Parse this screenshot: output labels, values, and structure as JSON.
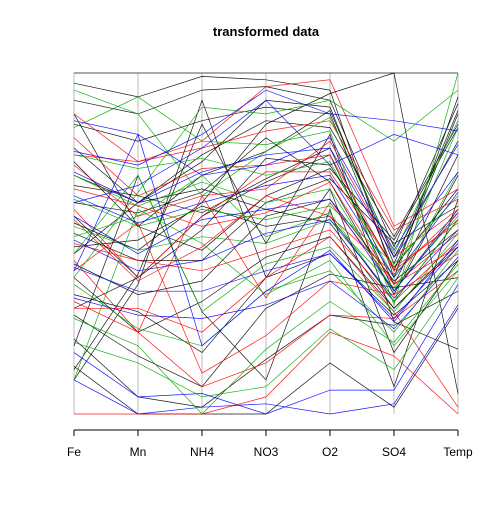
{
  "chart_data": {
    "type": "line",
    "plot_kind": "parallel-coordinates",
    "title": "transformed data",
    "xlabel": "",
    "ylabel": "",
    "variables": [
      "Fe",
      "Mn",
      "NH4",
      "NO3",
      "O2",
      "SO4",
      "Temp"
    ],
    "scale": "each variable rescaled to [0, 1]",
    "ylim": [
      0,
      1
    ],
    "grid": "vertical lines at each variable",
    "legend": "none",
    "series_colors": [
      "#000000",
      "#ff0000",
      "#00aa00",
      "#0000ff"
    ],
    "observations_note": "several hundred observations overplotted",
    "profiles": [
      {
        "color": "#000000",
        "values": [
          1.0,
          1.0,
          1.0,
          1.0,
          1.0,
          1.0,
          1.0
        ]
      },
      {
        "color": "#000000",
        "values": [
          0.97,
          0.93,
          0.99,
          0.98,
          0.95,
          0.4,
          0.93
        ]
      },
      {
        "color": "#000000",
        "values": [
          0.92,
          0.88,
          0.95,
          0.96,
          0.92,
          0.49,
          0.91
        ]
      },
      {
        "color": "#000000",
        "values": [
          0.85,
          0.8,
          0.86,
          0.9,
          0.88,
          0.42,
          0.88
        ]
      },
      {
        "color": "#000000",
        "values": [
          0.78,
          0.62,
          0.76,
          0.86,
          0.84,
          0.52,
          0.85
        ]
      },
      {
        "color": "#000000",
        "values": [
          0.74,
          0.55,
          0.7,
          0.77,
          0.89,
          0.46,
          0.8
        ]
      },
      {
        "color": "#000000",
        "values": [
          0.67,
          0.64,
          0.59,
          0.69,
          0.78,
          0.38,
          0.76
        ]
      },
      {
        "color": "#000000",
        "values": [
          0.62,
          0.59,
          0.65,
          0.81,
          0.68,
          0.35,
          0.7
        ]
      },
      {
        "color": "#000000",
        "values": [
          0.58,
          0.4,
          0.54,
          0.75,
          0.73,
          0.43,
          0.66
        ]
      },
      {
        "color": "#000000",
        "values": [
          0.53,
          0.45,
          0.45,
          0.62,
          0.69,
          0.5,
          0.61
        ]
      },
      {
        "color": "#000000",
        "values": [
          0.49,
          0.51,
          0.61,
          0.55,
          0.58,
          0.33,
          0.57
        ]
      },
      {
        "color": "#000000",
        "values": [
          0.44,
          0.35,
          0.39,
          0.58,
          0.63,
          0.39,
          0.54
        ]
      },
      {
        "color": "#000000",
        "values": [
          0.4,
          0.24,
          0.33,
          0.46,
          0.52,
          0.31,
          0.49
        ]
      },
      {
        "color": "#000000",
        "values": [
          0.35,
          0.3,
          0.18,
          0.4,
          0.47,
          0.29,
          0.45
        ]
      },
      {
        "color": "#000000",
        "values": [
          0.29,
          0.17,
          0.08,
          0.31,
          0.41,
          0.37,
          0.4
        ]
      },
      {
        "color": "#000000",
        "values": [
          0.22,
          0.05,
          0.02,
          0.16,
          0.29,
          0.26,
          0.36
        ]
      },
      {
        "color": "#000000",
        "values": [
          0.14,
          0.0,
          0.0,
          0.0,
          0.15,
          0.02,
          0.31
        ]
      },
      {
        "color": "#000000",
        "values": [
          0.13,
          0.41,
          0.85,
          0.5,
          0.82,
          0.27,
          0.19
        ]
      },
      {
        "color": "#000000",
        "values": [
          0.2,
          0.7,
          0.3,
          0.1,
          0.6,
          0.08,
          0.63
        ]
      },
      {
        "color": "#000000",
        "values": [
          0.56,
          0.48,
          0.62,
          0.85,
          0.94,
          1.0,
          0.06
        ]
      },
      {
        "color": "#000000",
        "values": [
          0.88,
          0.55,
          0.48,
          0.64,
          0.72,
          0.51,
          0.84
        ]
      },
      {
        "color": "#000000",
        "values": [
          0.7,
          0.62,
          0.74,
          0.92,
          0.9,
          0.44,
          0.89
        ]
      },
      {
        "color": "#000000",
        "values": [
          0.31,
          0.4,
          0.58,
          0.68,
          0.76,
          0.36,
          0.6
        ]
      },
      {
        "color": "#000000",
        "values": [
          0.1,
          0.38,
          0.92,
          0.4,
          0.66,
          0.18,
          0.45
        ]
      },
      {
        "color": "#000000",
        "values": [
          0.47,
          0.62,
          0.66,
          0.6,
          0.56,
          0.31,
          0.5
        ]
      },
      {
        "color": "#ff0000",
        "values": [
          0.88,
          0.74,
          0.78,
          0.83,
          0.86,
          0.54,
          0.63
        ]
      },
      {
        "color": "#ff0000",
        "values": [
          0.81,
          0.64,
          0.72,
          0.73,
          0.76,
          0.42,
          0.57
        ]
      },
      {
        "color": "#ff0000",
        "values": [
          0.73,
          0.58,
          0.64,
          0.66,
          0.8,
          0.46,
          0.6
        ]
      },
      {
        "color": "#ff0000",
        "values": [
          0.66,
          0.61,
          0.55,
          0.59,
          0.68,
          0.38,
          0.53
        ]
      },
      {
        "color": "#ff0000",
        "values": [
          0.57,
          0.39,
          0.49,
          0.64,
          0.58,
          0.41,
          0.59
        ]
      },
      {
        "color": "#ff0000",
        "values": [
          0.5,
          0.45,
          0.42,
          0.48,
          0.54,
          0.33,
          0.51
        ]
      },
      {
        "color": "#ff0000",
        "values": [
          0.42,
          0.56,
          0.12,
          0.23,
          0.39,
          0.35,
          0.47
        ]
      },
      {
        "color": "#ff0000",
        "values": [
          0.33,
          0.24,
          0.08,
          0.15,
          0.29,
          0.28,
          0.42
        ]
      },
      {
        "color": "#ff0000",
        "values": [
          0.0,
          0.0,
          0.0,
          0.05,
          0.24,
          0.17,
          0.0
        ]
      },
      {
        "color": "#ff0000",
        "values": [
          0.31,
          0.31,
          0.24,
          0.4,
          0.52,
          0.3,
          0.02
        ]
      },
      {
        "color": "#ff0000",
        "values": [
          0.76,
          0.74,
          0.8,
          0.96,
          0.98,
          0.55,
          0.66
        ]
      },
      {
        "color": "#ff0000",
        "values": [
          0.6,
          0.4,
          0.58,
          0.71,
          0.71,
          0.43,
          0.56
        ]
      },
      {
        "color": "#ff0000",
        "values": [
          0.45,
          0.24,
          0.64,
          0.34,
          0.62,
          0.38,
          0.49
        ]
      },
      {
        "color": "#00aa00",
        "values": [
          0.84,
          0.93,
          0.8,
          0.79,
          0.83,
          0.32,
          1.0
        ]
      },
      {
        "color": "#00aa00",
        "values": [
          0.76,
          0.72,
          0.75,
          0.7,
          0.74,
          0.4,
          0.84
        ]
      },
      {
        "color": "#00aa00",
        "values": [
          0.7,
          0.61,
          0.68,
          0.62,
          0.66,
          0.36,
          0.71
        ]
      },
      {
        "color": "#00aa00",
        "values": [
          0.63,
          0.55,
          0.6,
          0.57,
          0.61,
          0.44,
          0.64
        ]
      },
      {
        "color": "#00aa00",
        "values": [
          0.55,
          0.48,
          0.52,
          0.5,
          0.57,
          0.37,
          0.58
        ]
      },
      {
        "color": "#00aa00",
        "values": [
          0.47,
          0.7,
          0.3,
          0.44,
          0.49,
          0.3,
          0.53
        ]
      },
      {
        "color": "#00aa00",
        "values": [
          0.38,
          0.25,
          0.2,
          0.36,
          0.42,
          0.24,
          0.48
        ]
      },
      {
        "color": "#00aa00",
        "values": [
          0.28,
          0.2,
          0.0,
          0.19,
          0.33,
          0.21,
          0.44
        ]
      },
      {
        "color": "#00aa00",
        "values": [
          0.21,
          0.15,
          0.05,
          0.08,
          0.25,
          0.13,
          0.4
        ]
      },
      {
        "color": "#00aa00",
        "values": [
          0.4,
          0.65,
          0.9,
          0.88,
          0.92,
          0.8,
          0.95
        ]
      },
      {
        "color": "#00aa00",
        "values": [
          0.95,
          0.88,
          0.64,
          0.77,
          0.87,
          0.47,
          0.86
        ]
      },
      {
        "color": "#00aa00",
        "values": [
          0.52,
          0.58,
          0.7,
          0.52,
          0.59,
          0.33,
          0.57
        ]
      },
      {
        "color": "#00aa00",
        "values": [
          0.1,
          0.6,
          0.5,
          0.35,
          0.45,
          0.2,
          0.42
        ]
      },
      {
        "color": "#0000ff",
        "values": [
          0.77,
          0.73,
          0.82,
          0.95,
          0.88,
          0.86,
          0.83
        ]
      },
      {
        "color": "#0000ff",
        "values": [
          0.71,
          0.62,
          0.71,
          0.76,
          0.78,
          0.46,
          0.71
        ]
      },
      {
        "color": "#0000ff",
        "values": [
          0.64,
          0.56,
          0.62,
          0.67,
          0.7,
          0.4,
          0.65
        ]
      },
      {
        "color": "#0000ff",
        "values": [
          0.58,
          0.47,
          0.57,
          0.6,
          0.63,
          0.36,
          0.59
        ]
      },
      {
        "color": "#0000ff",
        "values": [
          0.51,
          0.42,
          0.45,
          0.53,
          0.57,
          0.34,
          0.54
        ]
      },
      {
        "color": "#0000ff",
        "values": [
          0.43,
          0.36,
          0.36,
          0.42,
          0.47,
          0.28,
          0.49
        ]
      },
      {
        "color": "#0000ff",
        "values": [
          0.34,
          0.29,
          0.28,
          0.32,
          0.39,
          0.25,
          0.46
        ]
      },
      {
        "color": "#0000ff",
        "values": [
          0.18,
          0.05,
          0.06,
          0.0,
          0.07,
          0.07,
          0.38
        ]
      },
      {
        "color": "#0000ff",
        "values": [
          0.1,
          0.0,
          0.02,
          0.03,
          0.0,
          0.03,
          0.32
        ]
      },
      {
        "color": "#0000ff",
        "values": [
          0.62,
          0.67,
          0.78,
          0.92,
          0.73,
          0.82,
          0.76
        ]
      },
      {
        "color": "#0000ff",
        "values": [
          0.42,
          0.82,
          0.2,
          0.36,
          0.48,
          0.27,
          0.51
        ]
      },
      {
        "color": "#0000ff",
        "values": [
          0.86,
          0.82,
          0.7,
          0.73,
          0.81,
          0.48,
          0.79
        ]
      }
    ]
  }
}
